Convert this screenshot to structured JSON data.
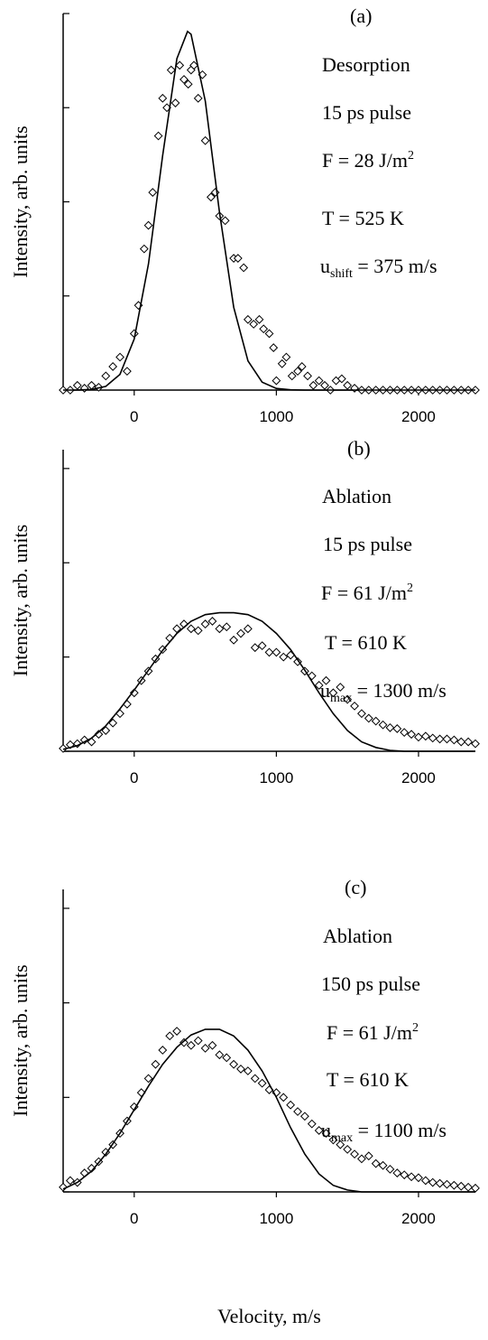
{
  "chart_data": [
    {
      "type": "scatter-fit",
      "ylabel": "Intensity, arb. units",
      "annotations": [
        [
          {
            "text": "(a)"
          }
        ],
        [
          {
            "text": "Desorption"
          }
        ],
        [
          {
            "text": "15 ps pulse"
          }
        ],
        [
          {
            "text": "F = 28 J/m"
          },
          {
            "text": "2",
            "shift": "sup"
          }
        ],
        [
          {
            "text": "T = 525 K"
          }
        ],
        [
          {
            "text": "u"
          },
          {
            "text": "shift",
            "shift": "sub"
          },
          {
            "text": " = 375 m/s"
          }
        ]
      ],
      "xlim": [
        -500,
        2400
      ],
      "xticks": [
        0,
        1000,
        2000
      ],
      "ylim": [
        0,
        4
      ],
      "yticks": [
        0,
        1,
        2,
        3,
        4
      ],
      "series": [
        {
          "style": "markers",
          "color": "#000000",
          "x": [
            -500,
            -450,
            -400,
            -350,
            -300,
            -250,
            -200,
            -150,
            -100,
            -50,
            0,
            30,
            70,
            100,
            130,
            170,
            200,
            230,
            260,
            290,
            320,
            350,
            380,
            400,
            420,
            450,
            480,
            500,
            540,
            570,
            600,
            640,
            700,
            730,
            770,
            800,
            840,
            880,
            910,
            950,
            980,
            1000,
            1040,
            1070,
            1110,
            1150,
            1180,
            1220,
            1260,
            1300,
            1340,
            1380,
            1420,
            1460,
            1500,
            1550,
            1600,
            1650,
            1700,
            1750,
            1800,
            1850,
            1900,
            1950,
            2000,
            2050,
            2100,
            2150,
            2200,
            2250,
            2300,
            2350,
            2400
          ],
          "values": [
            0,
            0,
            0.05,
            0.02,
            0.05,
            0.03,
            0.15,
            0.25,
            0.35,
            0.2,
            0.6,
            0.9,
            1.5,
            1.75,
            2.1,
            2.7,
            3.1,
            3.0,
            3.4,
            3.05,
            3.45,
            3.3,
            3.25,
            3.4,
            3.45,
            3.1,
            3.35,
            2.65,
            2.05,
            2.1,
            1.85,
            1.8,
            1.4,
            1.4,
            1.3,
            0.75,
            0.7,
            0.75,
            0.65,
            0.6,
            0.45,
            0.1,
            0.28,
            0.35,
            0.15,
            0.2,
            0.25,
            0.15,
            0.05,
            0.1,
            0.05,
            0,
            0.1,
            0.12,
            0.05,
            0.02,
            0,
            0,
            0,
            0,
            0,
            0,
            0,
            0,
            0,
            0,
            0,
            0,
            0,
            0,
            0,
            0,
            0
          ]
        },
        {
          "style": "line",
          "color": "#000000",
          "x": [
            -500,
            -400,
            -300,
            -200,
            -100,
            0,
            100,
            200,
            300,
            375,
            400,
            500,
            600,
            700,
            800,
            900,
            1000,
            1100,
            1200,
            2400
          ],
          "values": [
            0,
            0.001,
            0.007,
            0.039,
            0.167,
            0.543,
            1.34,
            2.49,
            3.52,
            3.81,
            3.78,
            3.07,
            1.89,
            0.88,
            0.31,
            0.084,
            0.017,
            0.003,
            0,
            0
          ]
        }
      ]
    },
    {
      "type": "scatter-fit",
      "ylabel": "Intensity, arb. units",
      "annotations": [
        [
          {
            "text": "(b)"
          }
        ],
        [
          {
            "text": "Ablation"
          }
        ],
        [
          {
            "text": "15 ps pulse"
          }
        ],
        [
          {
            "text": "F = 61 J/m"
          },
          {
            "text": "2",
            "shift": "sup"
          }
        ],
        [
          {
            "text": "T = 610 K"
          }
        ],
        [
          {
            "text": "u"
          },
          {
            "text": "max",
            "shift": "sub"
          },
          {
            "text": " = 1300 m/s"
          }
        ]
      ],
      "xlim": [
        -500,
        2400
      ],
      "xticks": [
        0,
        1000,
        2000
      ],
      "ylim": [
        0,
        3.2
      ],
      "yticks": [
        0,
        1,
        2,
        3
      ],
      "series": [
        {
          "style": "markers",
          "color": "#000000",
          "x": [
            -500,
            -450,
            -400,
            -350,
            -300,
            -250,
            -200,
            -150,
            -100,
            -50,
            0,
            50,
            100,
            150,
            200,
            250,
            300,
            350,
            400,
            450,
            500,
            550,
            600,
            650,
            700,
            750,
            800,
            850,
            900,
            950,
            1000,
            1050,
            1100,
            1150,
            1200,
            1250,
            1300,
            1350,
            1400,
            1450,
            1500,
            1550,
            1600,
            1650,
            1700,
            1750,
            1800,
            1850,
            1900,
            1950,
            2000,
            2050,
            2100,
            2150,
            2200,
            2250,
            2300,
            2350,
            2400
          ],
          "values": [
            0.03,
            0.07,
            0.08,
            0.12,
            0.1,
            0.18,
            0.22,
            0.3,
            0.4,
            0.5,
            0.62,
            0.75,
            0.85,
            0.98,
            1.08,
            1.2,
            1.3,
            1.35,
            1.3,
            1.28,
            1.35,
            1.38,
            1.3,
            1.32,
            1.18,
            1.25,
            1.3,
            1.1,
            1.12,
            1.05,
            1.05,
            1.0,
            1.02,
            0.95,
            0.85,
            0.8,
            0.7,
            0.75,
            0.62,
            0.68,
            0.55,
            0.48,
            0.4,
            0.35,
            0.32,
            0.28,
            0.25,
            0.24,
            0.2,
            0.18,
            0.15,
            0.16,
            0.14,
            0.13,
            0.13,
            0.12,
            0.1,
            0.1,
            0.08
          ]
        },
        {
          "style": "line",
          "color": "#000000",
          "x": [
            -500,
            -400,
            -300,
            -200,
            -100,
            0,
            100,
            200,
            300,
            400,
            500,
            600,
            700,
            800,
            900,
            1000,
            1100,
            1200,
            1300,
            1400,
            1500,
            1600,
            1700,
            1800,
            1900,
            2000,
            2400
          ],
          "values": [
            0.02,
            0.06,
            0.14,
            0.27,
            0.45,
            0.65,
            0.86,
            1.07,
            1.25,
            1.38,
            1.45,
            1.47,
            1.47,
            1.45,
            1.38,
            1.25,
            1.08,
            0.86,
            0.62,
            0.4,
            0.22,
            0.1,
            0.04,
            0.01,
            0,
            0,
            0
          ]
        }
      ]
    },
    {
      "type": "scatter-fit",
      "ylabel": "Intensity, arb. units",
      "xlabel": "Velocity, m/s",
      "annotations": [
        [
          {
            "text": "(c)"
          }
        ],
        [
          {
            "text": "Ablation"
          }
        ],
        [
          {
            "text": "150 ps pulse"
          }
        ],
        [
          {
            "text": "F = 61 J/m"
          },
          {
            "text": "2",
            "shift": "sup"
          }
        ],
        [
          {
            "text": "T = 610 K"
          }
        ],
        [
          {
            "text": "u"
          },
          {
            "text": "max",
            "shift": "sub"
          },
          {
            "text": " = 1100 m/s"
          }
        ]
      ],
      "xlim": [
        -500,
        2400
      ],
      "xticks": [
        0,
        1000,
        2000
      ],
      "ylim": [
        0,
        3.2
      ],
      "yticks": [
        0,
        1,
        2,
        3
      ],
      "series": [
        {
          "style": "markers",
          "color": "#000000",
          "x": [
            -500,
            -450,
            -400,
            -350,
            -300,
            -250,
            -200,
            -150,
            -100,
            -50,
            0,
            50,
            100,
            150,
            200,
            250,
            300,
            350,
            400,
            450,
            500,
            550,
            600,
            650,
            700,
            750,
            800,
            850,
            900,
            950,
            1000,
            1050,
            1100,
            1150,
            1200,
            1250,
            1300,
            1350,
            1400,
            1450,
            1500,
            1550,
            1600,
            1650,
            1700,
            1750,
            1800,
            1850,
            1900,
            1950,
            2000,
            2050,
            2100,
            2150,
            2200,
            2250,
            2300,
            2350,
            2400
          ],
          "values": [
            0.05,
            0.12,
            0.1,
            0.2,
            0.25,
            0.32,
            0.42,
            0.5,
            0.62,
            0.75,
            0.9,
            1.05,
            1.2,
            1.35,
            1.5,
            1.65,
            1.7,
            1.58,
            1.55,
            1.6,
            1.52,
            1.55,
            1.45,
            1.42,
            1.35,
            1.3,
            1.28,
            1.2,
            1.15,
            1.08,
            1.05,
            1.0,
            0.92,
            0.85,
            0.8,
            0.72,
            0.65,
            0.62,
            0.55,
            0.5,
            0.45,
            0.4,
            0.35,
            0.38,
            0.3,
            0.28,
            0.24,
            0.2,
            0.18,
            0.16,
            0.15,
            0.12,
            0.1,
            0.09,
            0.08,
            0.07,
            0.06,
            0.05,
            0.04
          ]
        },
        {
          "style": "line",
          "color": "#000000",
          "x": [
            -500,
            -400,
            -300,
            -200,
            -100,
            0,
            100,
            200,
            300,
            400,
            500,
            600,
            700,
            800,
            900,
            1000,
            1100,
            1200,
            1300,
            1400,
            1500,
            1600,
            2400
          ],
          "values": [
            0.03,
            0.1,
            0.22,
            0.4,
            0.62,
            0.87,
            1.12,
            1.35,
            1.53,
            1.66,
            1.72,
            1.72,
            1.65,
            1.5,
            1.28,
            1.0,
            0.68,
            0.4,
            0.19,
            0.07,
            0.02,
            0,
            0
          ]
        }
      ]
    }
  ]
}
